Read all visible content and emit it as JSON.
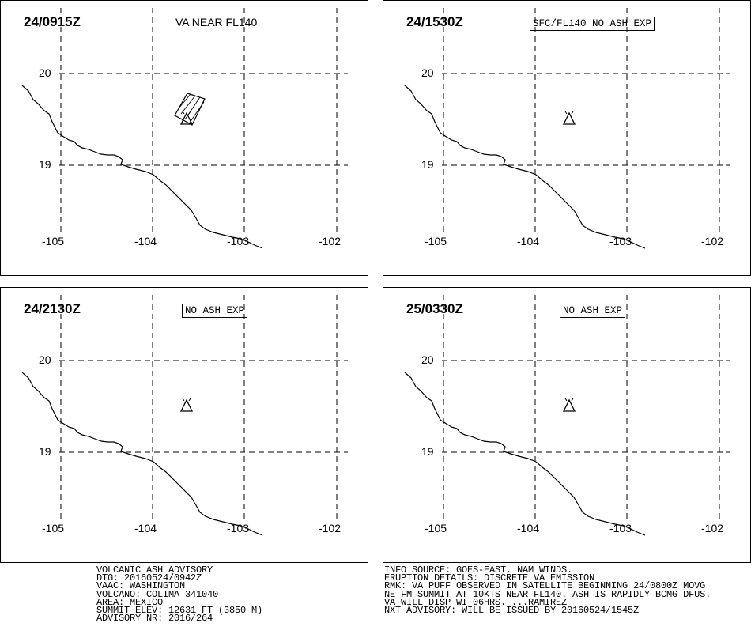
{
  "panels": [
    {
      "time": "24/0915Z",
      "annotation": "VA NEAR FL140",
      "annotation_boxed": false,
      "ash_area": true
    },
    {
      "time": "24/1530Z",
      "annotation": "SFC/FL140 NO ASH EXP",
      "annotation_boxed": true,
      "ash_area": false
    },
    {
      "time": "24/2130Z",
      "annotation": "NO ASH EXP",
      "annotation_boxed": true,
      "ash_area": false
    },
    {
      "time": "25/0330Z",
      "annotation": "NO ASH EXP",
      "annotation_boxed": true,
      "ash_area": false
    }
  ],
  "axes": {
    "lon_labels": [
      "-105",
      "-104",
      "-103",
      "-102"
    ],
    "lat_labels": [
      "20",
      "19"
    ]
  },
  "volcano_symbol": "volcano-triangle-icon",
  "advisory_left": [
    "VOLCANIC ASH ADVISORY",
    "DTG: 20160524/0942Z",
    "VAAC: WASHINGTON",
    "VOLCANO: COLIMA 341040",
    "AREA: MEXICO",
    "SUMMIT ELEV: 12631 FT (3850 M)",
    "ADVISORY NR: 2016/264"
  ],
  "advisory_right": [
    "INFO SOURCE: GOES-EAST. NAM WINDS.",
    "ERUPTION DETAILS: DISCRETE VA EMISSION",
    "RMK: VA PUFF OBSERVED IN SATELLITE BEGINNING 24/0800Z MOVG",
    "NE FM SUMMIT AT 10KTS NEAR FL140. ASH IS RAPIDLY BCMG DFUS.",
    "VA WILL DISP WI 06HRS. ...RAMIREZ",
    "NXT ADVISORY: WILL BE ISSUED BY 20160524/1545Z"
  ]
}
